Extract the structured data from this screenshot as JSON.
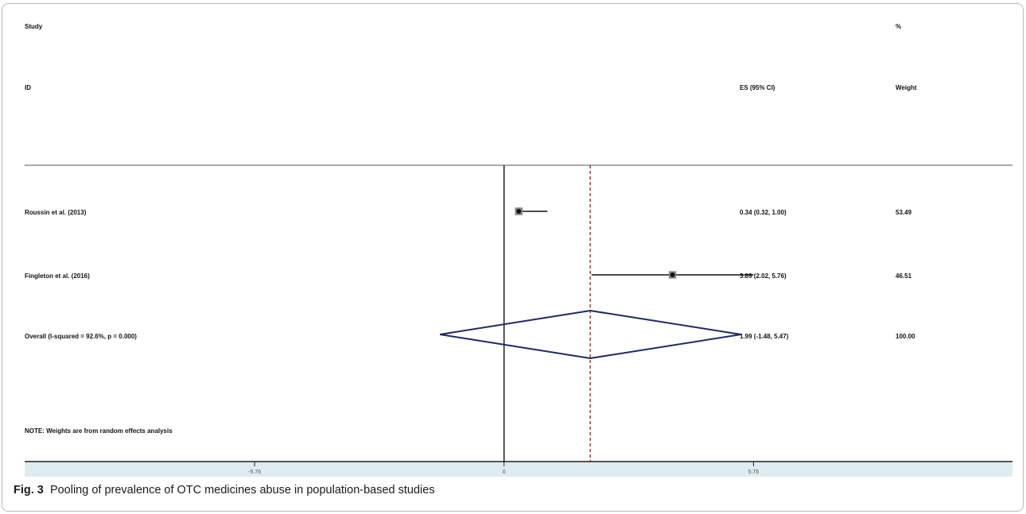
{
  "headers": {
    "study_line1": "Study",
    "study_line2": "ID",
    "es": "ES (95% CI)",
    "weight_line1": "%",
    "weight_line2": "Weight"
  },
  "note": "NOTE: Weights are from random effects analysis",
  "caption": {
    "label": "Fig. 3",
    "text": "Pooling of prevalence of OTC medicines abuse in population-based studies"
  },
  "chart_data": {
    "type": "forest",
    "xlim": [
      -11.07,
      11.74
    ],
    "x_ticks": [
      -5.76,
      0,
      5.76
    ],
    "x_tick_labels": [
      "-5.76",
      "0",
      "5.76"
    ],
    "null_line": 0,
    "pooled_line": 1.99,
    "studies": [
      {
        "label": "Roussin et al. (2013)",
        "es": 0.34,
        "ci_low": 0.32,
        "ci_high": 1.0,
        "es_text": "0.34 (0.32, 1.00)",
        "weight": 53.49,
        "weight_text": "53.49"
      },
      {
        "label": "Fingleton et al. (2016)",
        "es": 3.89,
        "ci_low": 2.02,
        "ci_high": 5.76,
        "es_text": "3.89 (2.02, 5.76)",
        "weight": 46.51,
        "weight_text": "46.51"
      }
    ],
    "overall": {
      "label": "Overall  (I-squared = 92.6%, p = 0.000)",
      "es": 1.99,
      "ci_low": -1.48,
      "ci_high": 5.47,
      "es_text": "1.99 (-1.48, 5.47)",
      "weight_text": "100.00"
    },
    "colors": {
      "diamond": "#1f2a5a",
      "pooled_line": "#8b2323",
      "axis_band": "#dfecef"
    }
  }
}
